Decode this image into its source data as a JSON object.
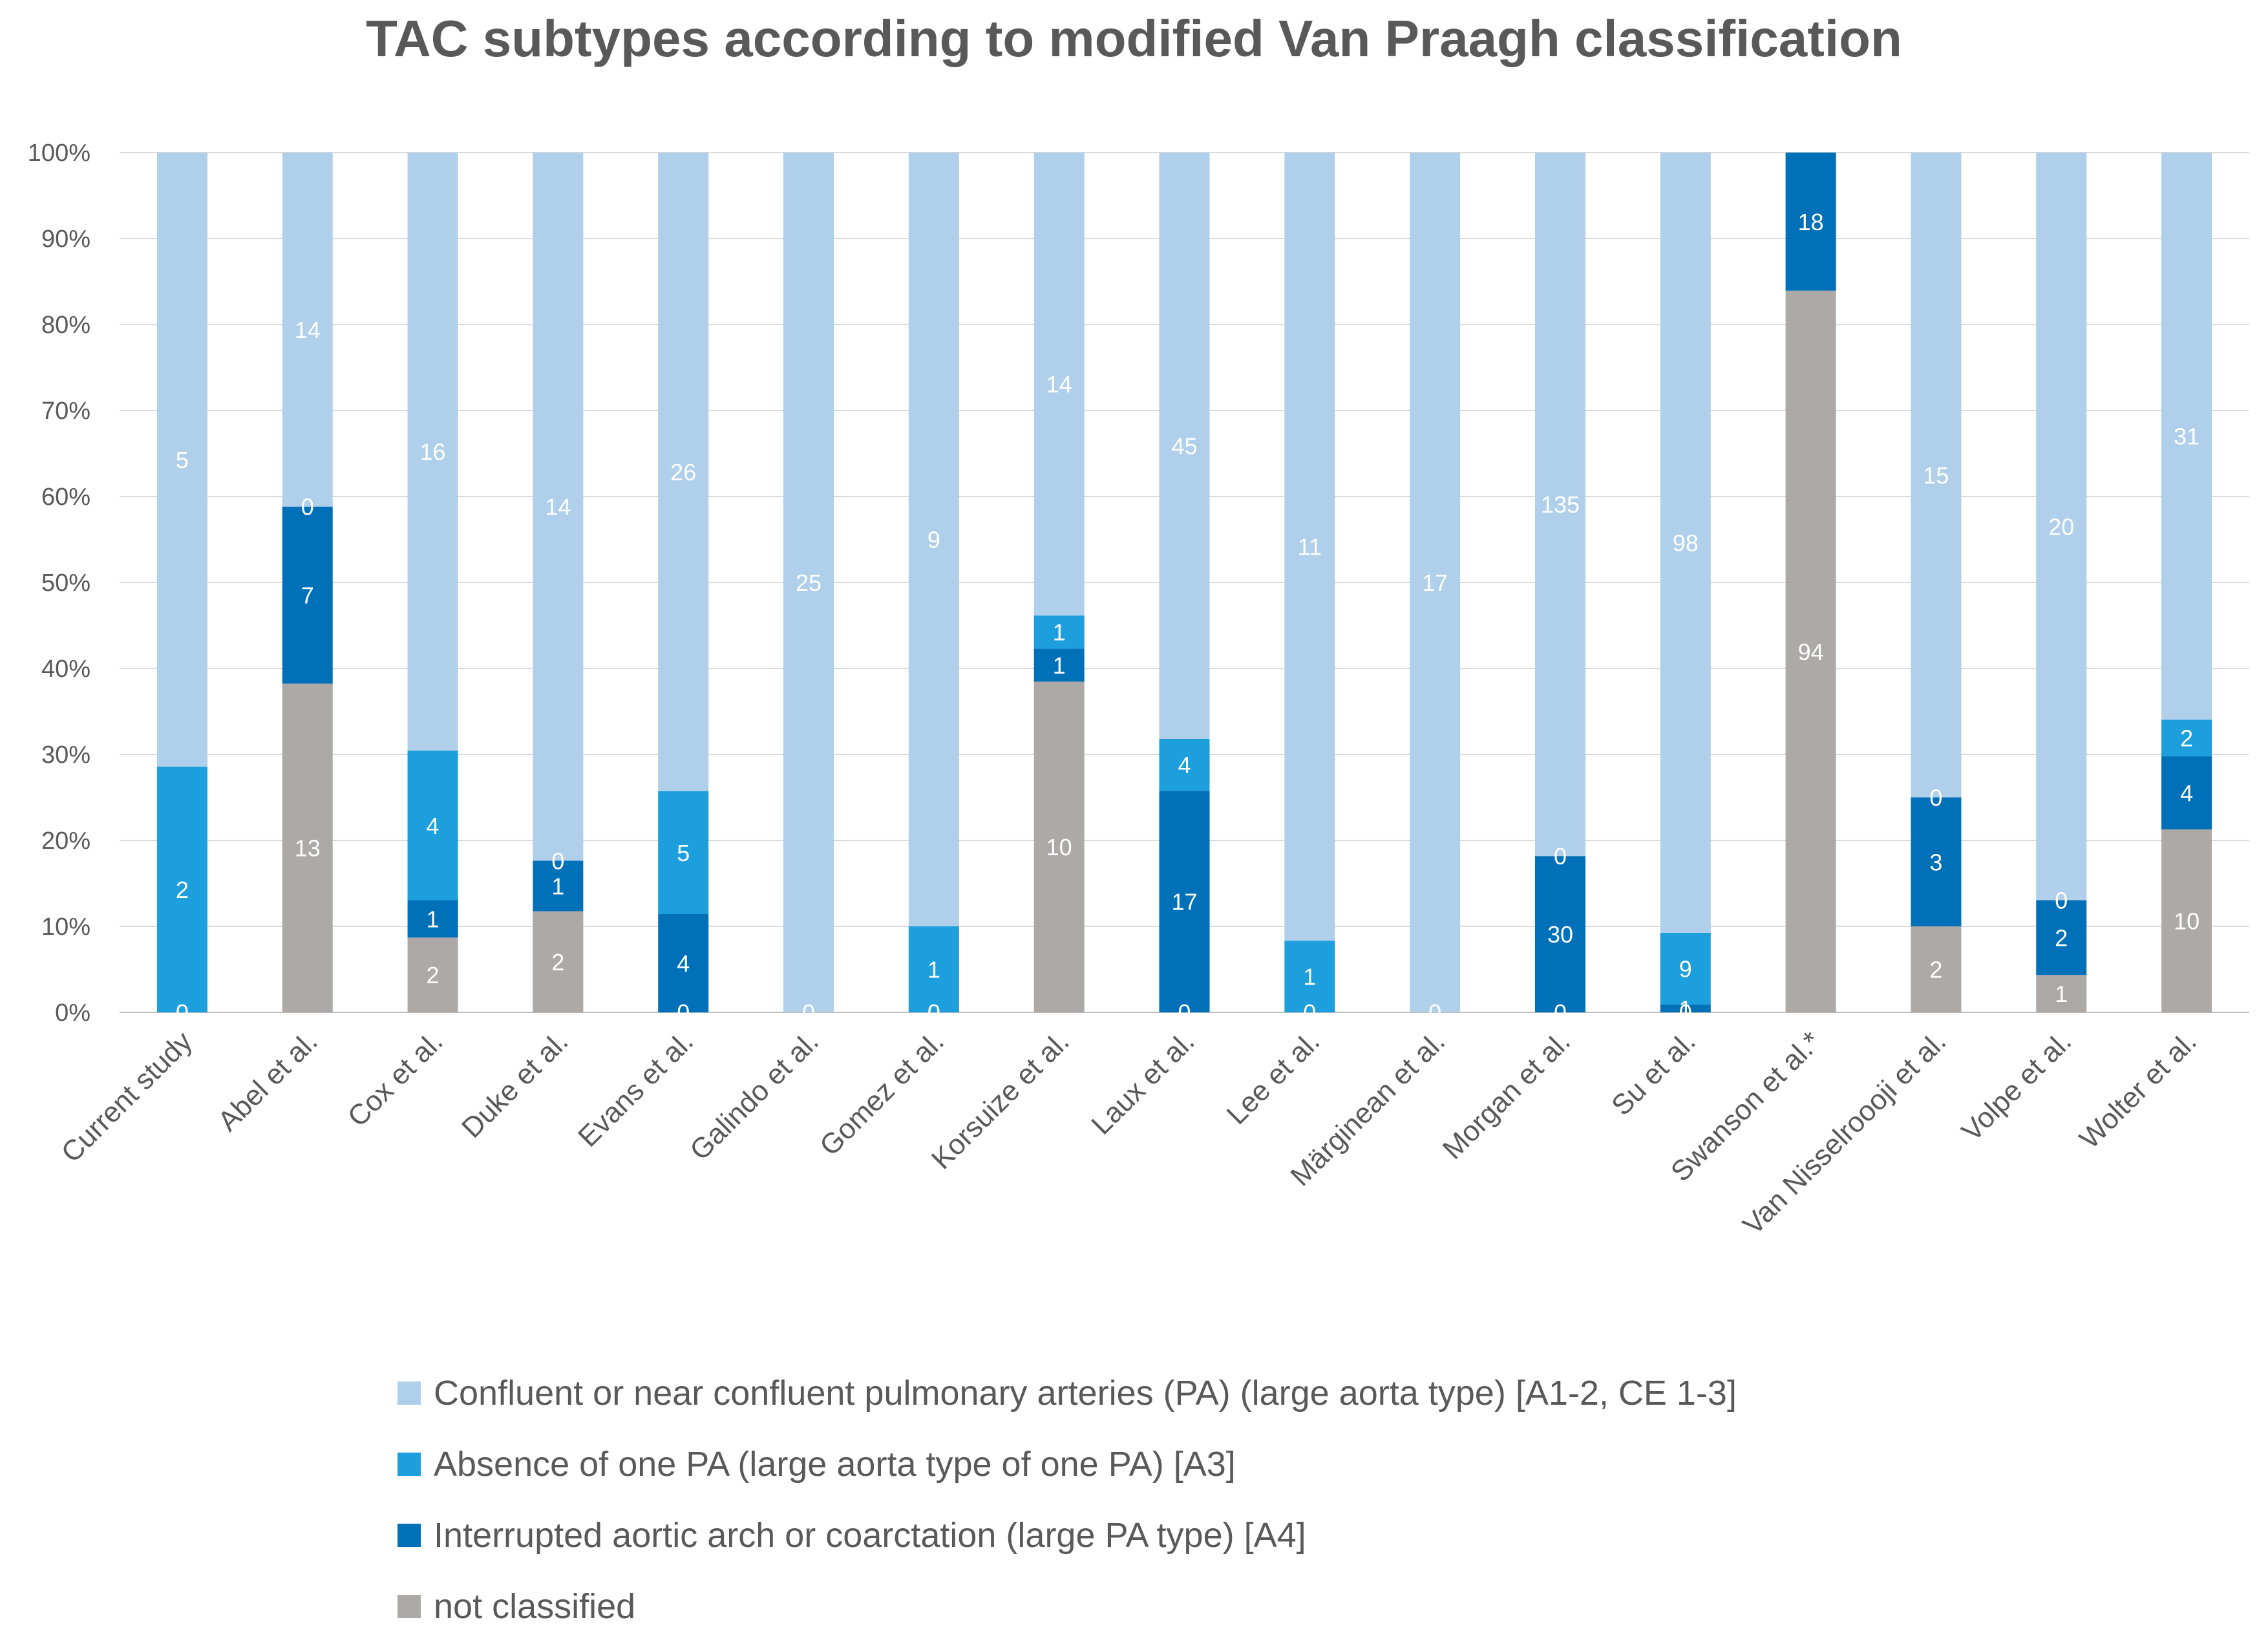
{
  "chart_data": {
    "type": "bar",
    "stacked": "percent",
    "title": "TAC subtypes according to modified Van Praagh classification",
    "xlabel": "",
    "ylabel": "",
    "ylim": [
      0,
      100
    ],
    "yticks": [
      "0%",
      "10%",
      "20%",
      "30%",
      "40%",
      "50%",
      "60%",
      "70%",
      "80%",
      "90%",
      "100%"
    ],
    "grid": true,
    "legend_position": "bottom",
    "categories": [
      "Current study",
      "Abel et al.",
      "Cox et al.",
      "Duke et al.",
      "Evans et al.",
      "Galindo et al.",
      "Gomez et al.",
      "Korsuize et al.",
      "Laux et al.",
      "Lee et al.",
      "Märginean et al.",
      "Morgan et al.",
      "Su et al.",
      "Swanson et al.*",
      "Van Nisselroooji et al.",
      "Volpe et al.",
      "Wolter et al."
    ],
    "series": [
      {
        "name": "not classified",
        "color": "#ADA9A7",
        "label_color": "#ffffff",
        "values": [
          null,
          13,
          2,
          2,
          null,
          null,
          null,
          10,
          null,
          null,
          null,
          null,
          null,
          94,
          2,
          1,
          10
        ]
      },
      {
        "name": "Interrupted aortic arch or coarctation (large PA type) [A4]",
        "color": "#0070B8",
        "label_color": "#ffffff",
        "values": [
          0,
          7,
          1,
          1,
          4,
          null,
          0,
          1,
          17,
          null,
          null,
          30,
          1,
          18,
          3,
          2,
          4
        ]
      },
      {
        "name": "Absence of one PA (large aorta type of one PA) [A3]",
        "color": "#1C9FDC",
        "label_color": "#ffffff",
        "values": [
          2,
          0,
          4,
          0,
          5,
          null,
          1,
          1,
          4,
          1,
          null,
          0,
          9,
          null,
          0,
          0,
          2
        ]
      },
      {
        "name": "Confluent or near confluent pulmonary arteries (PA) (large aorta type) [A1-2, CE 1-3]",
        "color": "#AFCFEA",
        "label_color": "#ffffff",
        "values": [
          5,
          14,
          16,
          14,
          26,
          25,
          9,
          14,
          45,
          11,
          17,
          135,
          98,
          null,
          15,
          20,
          31
        ]
      }
    ],
    "extra_labels": [
      {
        "category": "Current study",
        "series": "not classified",
        "value": 0
      },
      {
        "category": "Evans et al.",
        "series": "not classified",
        "value": 0
      },
      {
        "category": "Galindo et al.",
        "series": "not classified",
        "value": 0
      },
      {
        "category": "Gomez et al.",
        "series": "not classified",
        "value": 0
      },
      {
        "category": "Laux et al.",
        "series": "not classified",
        "value": 0
      },
      {
        "category": "Lee et al.",
        "series": "not classified",
        "value": 0
      },
      {
        "category": "Märginean et al.",
        "series": "not classified",
        "value": 0
      },
      {
        "category": "Morgan et al.",
        "series": "not classified",
        "value": 0
      },
      {
        "category": "Su et al.",
        "series": "not classified",
        "value": 0
      }
    ]
  }
}
